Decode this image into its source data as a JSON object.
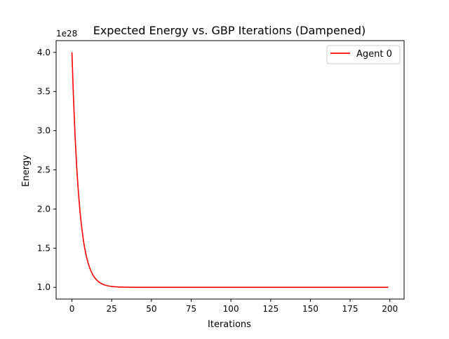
{
  "chart_data": {
    "type": "line",
    "title": "Expected Energy vs. GBP Iterations (Dampened)",
    "xlabel": "Iterations",
    "ylabel": "Energy",
    "y_offset_label": "1e28",
    "xlim": [
      -9.95,
      208.95
    ],
    "ylim": [
      0.85,
      4.15
    ],
    "x_ticks": [
      0,
      25,
      50,
      75,
      100,
      125,
      150,
      175,
      200
    ],
    "y_ticks": [
      1.0,
      1.5,
      2.0,
      2.5,
      3.0,
      3.5,
      4.0
    ],
    "y_tick_labels": [
      "1.0",
      "1.5",
      "2.0",
      "2.5",
      "3.0",
      "3.5",
      "4.0"
    ],
    "grid": false,
    "legend_position": "top-right",
    "series": [
      {
        "name": "Agent 0",
        "color": "#ff0000",
        "x_range": [
          0,
          199
        ],
        "curve": "exponential decay from 4.0 toward 1.0 (×1e28), flat at ≈1.0 after about 30 iterations",
        "start": 4.0,
        "asymptote": 1.0,
        "decay_per_iteration": 0.8
      }
    ]
  }
}
